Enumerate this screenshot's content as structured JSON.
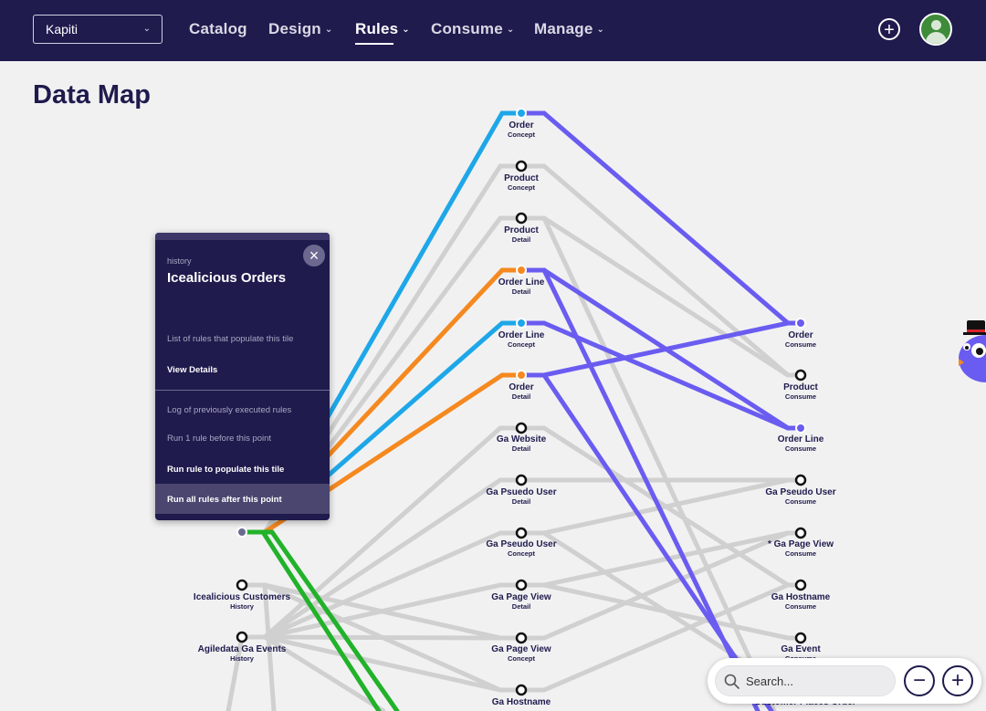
{
  "topbar": {
    "tenant": "Kapiti",
    "nav": [
      {
        "label": "Catalog",
        "caret": false
      },
      {
        "label": "Design",
        "caret": true
      },
      {
        "label": "Rules",
        "caret": true,
        "active": true
      },
      {
        "label": "Consume",
        "caret": true
      },
      {
        "label": "Manage",
        "caret": true
      }
    ]
  },
  "page": {
    "title": "Data Map"
  },
  "nodes": {
    "history": [
      {
        "name": "",
        "type": ""
      },
      {
        "name": "Icealicious Customers",
        "type": "History"
      },
      {
        "name": "Agiledata Ga Events",
        "type": "History"
      }
    ],
    "middle": [
      {
        "name": "Order",
        "type": "Concept"
      },
      {
        "name": "Product",
        "type": "Concept"
      },
      {
        "name": "Product",
        "type": "Detail"
      },
      {
        "name": "Order Line",
        "type": "Detail"
      },
      {
        "name": "Order Line",
        "type": "Concept"
      },
      {
        "name": "Order",
        "type": "Detail"
      },
      {
        "name": "Ga Website",
        "type": "Detail"
      },
      {
        "name": "Ga Psuedo User",
        "type": "Detail"
      },
      {
        "name": "Ga Pseudo User",
        "type": "Concept"
      },
      {
        "name": "Ga Page View",
        "type": "Detail"
      },
      {
        "name": "Ga Page View",
        "type": "Concept"
      },
      {
        "name": "Ga Hostname",
        "type": ""
      }
    ],
    "consume": [
      {
        "name": "Order",
        "type": "Consume"
      },
      {
        "name": "Product",
        "type": "Consume"
      },
      {
        "name": "Order Line",
        "type": "Consume"
      },
      {
        "name": "Ga Pseudo User",
        "type": "Consume"
      },
      {
        "name": "* Ga Page View",
        "type": "Consume"
      },
      {
        "name": "Ga Hostname",
        "type": "Consume"
      },
      {
        "name": "Ga Event",
        "type": "Consume"
      },
      {
        "name": "Customer Places Order",
        "type": ""
      }
    ]
  },
  "popup": {
    "kicker": "history",
    "title": "Icealicious Orders",
    "close": "×",
    "rules_heading": "List of rules that populate this tile",
    "view_details": "View Details",
    "log_heading": "Log of previously executed rules",
    "run_before": "Run 1 rule before this point",
    "run_populate": "Run rule to populate this tile",
    "run_after": "Run all rules after this point"
  },
  "search": {
    "placeholder": "Search..."
  },
  "zoom": {
    "out": "−",
    "in": "+"
  },
  "colors": {
    "navy": "#1f1b4d",
    "blue_line": "#1ea7e8",
    "orange_line": "#f5891f",
    "purple_line": "#6a5cf0",
    "green_line": "#22b22a",
    "gray_line": "#d0d0d0"
  }
}
